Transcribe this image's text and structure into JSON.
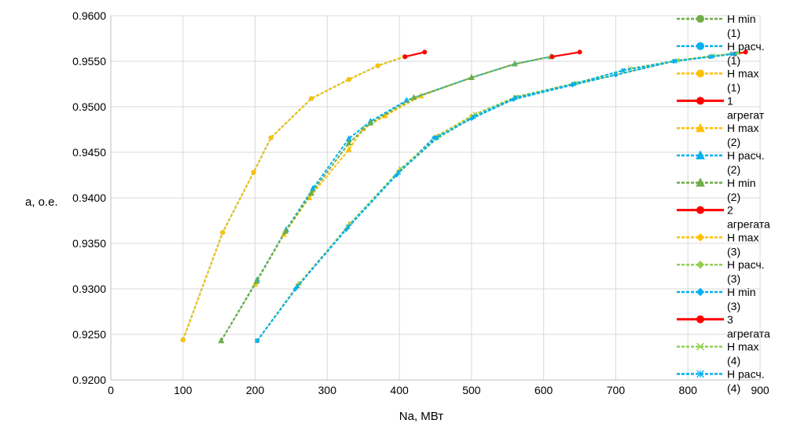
{
  "chart_data": {
    "type": "line",
    "xlabel": "Na, МВт",
    "ylabel": "a, o.e.",
    "xlim": [
      0,
      900
    ],
    "ylim": [
      0.92,
      0.96
    ],
    "x_ticks": [
      "0",
      "100",
      "200",
      "300",
      "400",
      "500",
      "600",
      "700",
      "800",
      "900"
    ],
    "y_ticks": [
      "0.9200",
      "0.9250",
      "0.9300",
      "0.9350",
      "0.9400",
      "0.9450",
      "0.9500",
      "0.9550",
      "0.9600"
    ],
    "grid": true,
    "legend_position": "right",
    "series": [
      {
        "legend": [
          "H min",
          "(1)"
        ],
        "color": "#70ad47",
        "dashed": true,
        "marker": "circle",
        "points": [
          [
            100,
            0.9244
          ],
          [
            155,
            0.9362
          ],
          [
            198,
            0.9428
          ],
          [
            222,
            0.9466
          ],
          [
            278,
            0.9509
          ],
          [
            330,
            0.953
          ],
          [
            370,
            0.9545
          ],
          [
            407,
            0.9555
          ]
        ]
      },
      {
        "legend": [
          "H расч.",
          "(1)"
        ],
        "color": "#00b0f0",
        "dashed": true,
        "marker": "circle",
        "points": [
          [
            100,
            0.9244
          ],
          [
            155,
            0.9362
          ],
          [
            198,
            0.9428
          ],
          [
            222,
            0.9466
          ],
          [
            278,
            0.9509
          ],
          [
            330,
            0.953
          ],
          [
            370,
            0.9545
          ],
          [
            407,
            0.9555
          ]
        ]
      },
      {
        "legend": [
          "H max",
          "(1)"
        ],
        "color": "#ffc000",
        "dashed": true,
        "marker": "circle",
        "points": [
          [
            100,
            0.9244
          ],
          [
            155,
            0.9362
          ],
          [
            198,
            0.9428
          ],
          [
            222,
            0.9466
          ],
          [
            278,
            0.9509
          ],
          [
            330,
            0.953
          ],
          [
            370,
            0.9545
          ],
          [
            407,
            0.9555
          ]
        ]
      },
      {
        "legend": [
          "1",
          "агрегат"
        ],
        "color": "#ff0000",
        "dashed": false,
        "marker": "circle",
        "points": [
          [
            408,
            0.9555
          ],
          [
            435,
            0.956
          ]
        ]
      },
      {
        "legend": [
          "H max",
          "(2)"
        ],
        "color": "#ffc000",
        "dashed": true,
        "marker": "triangle",
        "points": [
          [
            153,
            0.9243
          ],
          [
            200,
            0.9305
          ],
          [
            240,
            0.936
          ],
          [
            275,
            0.94
          ],
          [
            330,
            0.9453
          ],
          [
            350,
            0.9476
          ],
          [
            380,
            0.949
          ],
          [
            430,
            0.9512
          ],
          [
            500,
            0.9532
          ],
          [
            560,
            0.9547
          ],
          [
            610,
            0.9555
          ]
        ]
      },
      {
        "legend": [
          "H расч.",
          "(2)"
        ],
        "color": "#00b0f0",
        "dashed": true,
        "marker": "triangle",
        "points": [
          [
            153,
            0.9243
          ],
          [
            203,
            0.931
          ],
          [
            243,
            0.9365
          ],
          [
            280,
            0.941
          ],
          [
            330,
            0.9465
          ],
          [
            360,
            0.9484
          ],
          [
            410,
            0.9507
          ],
          [
            500,
            0.9532
          ],
          [
            560,
            0.9547
          ],
          [
            610,
            0.9555
          ]
        ]
      },
      {
        "legend": [
          "H min",
          "(2)"
        ],
        "color": "#70ad47",
        "dashed": true,
        "marker": "triangle",
        "points": [
          [
            153,
            0.9243
          ],
          [
            202,
            0.9308
          ],
          [
            242,
            0.9363
          ],
          [
            278,
            0.9405
          ],
          [
            330,
            0.946
          ],
          [
            360,
            0.9482
          ],
          [
            420,
            0.951
          ],
          [
            500,
            0.9532
          ],
          [
            560,
            0.9547
          ],
          [
            610,
            0.9555
          ]
        ]
      },
      {
        "legend": [
          "2",
          "агрегата"
        ],
        "color": "#ff0000",
        "dashed": false,
        "marker": "circle",
        "points": [
          [
            612,
            0.9555
          ],
          [
            650,
            0.956
          ]
        ]
      },
      {
        "legend": [
          "H max",
          "(3)"
        ],
        "color": "#ffc000",
        "dashed": true,
        "marker": "diamond",
        "points": [
          [
            203,
            0.9243
          ],
          [
            260,
            0.9305
          ],
          [
            330,
            0.937
          ],
          [
            400,
            0.943
          ],
          [
            450,
            0.9467
          ],
          [
            500,
            0.949
          ],
          [
            560,
            0.951
          ],
          [
            640,
            0.9525
          ],
          [
            700,
            0.9535
          ],
          [
            780,
            0.955
          ],
          [
            830,
            0.9555
          ],
          [
            860,
            0.9558
          ]
        ]
      },
      {
        "legend": [
          "H расч.",
          "(3)"
        ],
        "color": "#92d050",
        "dashed": true,
        "marker": "diamond",
        "points": [
          [
            203,
            0.9243
          ],
          [
            258,
            0.9302
          ],
          [
            328,
            0.9367
          ],
          [
            398,
            0.9427
          ],
          [
            452,
            0.9465
          ],
          [
            502,
            0.9488
          ],
          [
            560,
            0.9509
          ],
          [
            640,
            0.9524
          ],
          [
            700,
            0.9535
          ],
          [
            780,
            0.955
          ],
          [
            830,
            0.9555
          ],
          [
            860,
            0.9558
          ]
        ]
      },
      {
        "legend": [
          "H min",
          "(3)"
        ],
        "color": "#00b0f0",
        "dashed": true,
        "marker": "diamond",
        "points": [
          [
            203,
            0.9243
          ],
          [
            256,
            0.93
          ],
          [
            326,
            0.9365
          ],
          [
            396,
            0.9425
          ],
          [
            448,
            0.9466
          ],
          [
            500,
            0.9487
          ],
          [
            558,
            0.9508
          ],
          [
            640,
            0.9524
          ],
          [
            700,
            0.9535
          ],
          [
            780,
            0.955
          ],
          [
            830,
            0.9555
          ],
          [
            860,
            0.9558
          ]
        ]
      },
      {
        "legend": [
          "3",
          "агрегата"
        ],
        "color": "#ff0000",
        "dashed": false,
        "marker": "circle",
        "points": [
          [
            865,
            0.9558
          ],
          [
            880,
            0.956
          ]
        ]
      },
      {
        "legend": [
          "H max",
          "(4)"
        ],
        "color": "#92d050",
        "dashed": true,
        "marker": "x",
        "points": [
          [
            203,
            0.9243
          ],
          [
            262,
            0.9306
          ],
          [
            332,
            0.9372
          ],
          [
            402,
            0.9432
          ],
          [
            455,
            0.9468
          ],
          [
            505,
            0.9492
          ],
          [
            562,
            0.9511
          ],
          [
            645,
            0.9526
          ],
          [
            720,
            0.9542
          ],
          [
            785,
            0.9551
          ],
          [
            835,
            0.9556
          ],
          [
            870,
            0.9559
          ]
        ]
      },
      {
        "legend": [
          "H расч.",
          "(4)"
        ],
        "color": "#00b0f0",
        "dashed": true,
        "marker": "star",
        "points": [
          [
            203,
            0.9243
          ],
          [
            259,
            0.9303
          ],
          [
            329,
            0.9368
          ],
          [
            399,
            0.9428
          ],
          [
            452,
            0.9466
          ],
          [
            503,
            0.9489
          ],
          [
            561,
            0.951
          ],
          [
            642,
            0.9525
          ],
          [
            710,
            0.954
          ],
          [
            782,
            0.955
          ],
          [
            833,
            0.9555
          ],
          [
            865,
            0.9558
          ]
        ]
      }
    ]
  }
}
